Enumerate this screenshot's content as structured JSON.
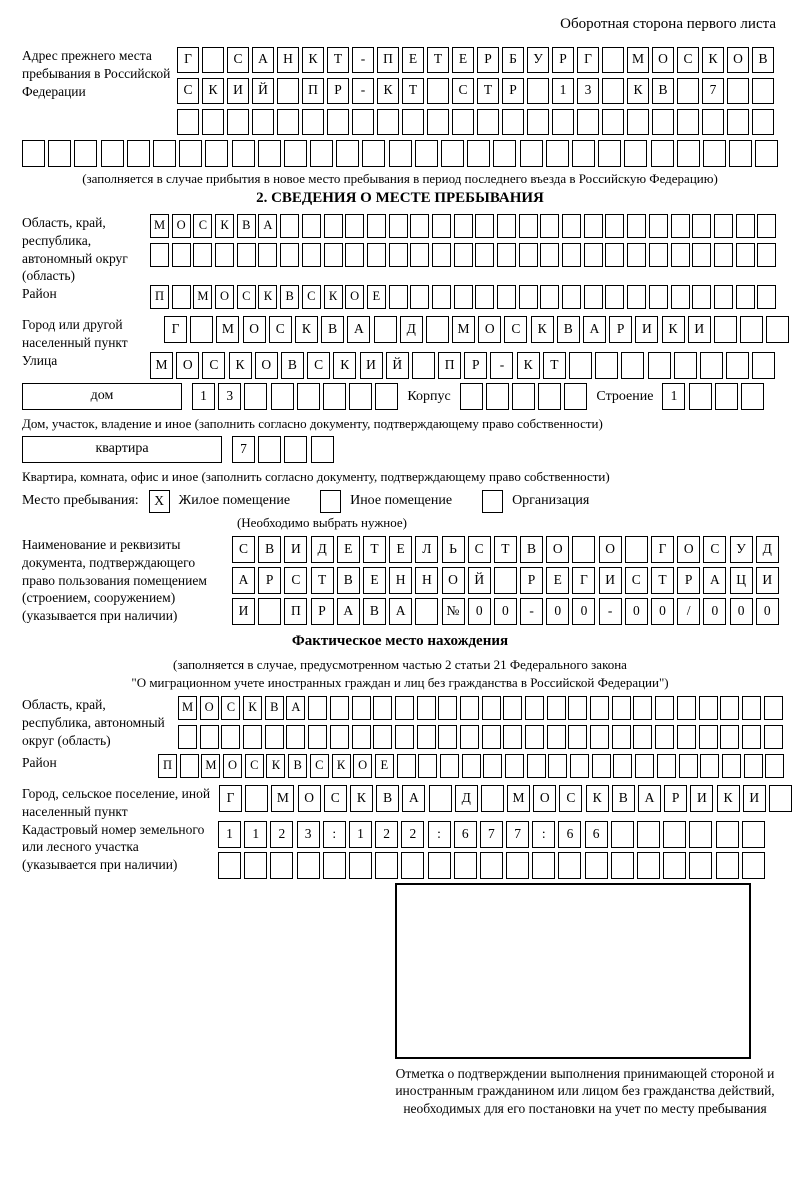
{
  "page_note": "Оборотная сторона первого листа",
  "prev_address": {
    "label": "Адрес прежнего места пребывания в Российской Федерации",
    "row1": {
      "count": 24,
      "chars": [
        "Г",
        "",
        "С",
        "А",
        "Н",
        "К",
        "Т",
        "-",
        "П",
        "Е",
        "Т",
        "Е",
        "Р",
        "Б",
        "У",
        "Р",
        "Г",
        "",
        "М",
        "О",
        "С",
        "К",
        "О",
        "В"
      ]
    },
    "row2": {
      "count": 24,
      "chars": [
        "С",
        "К",
        "И",
        "Й",
        "",
        "П",
        "Р",
        "-",
        "К",
        "Т",
        "",
        "С",
        "Т",
        "Р",
        "",
        "1",
        "3",
        "",
        "К",
        "В",
        "",
        "7"
      ]
    },
    "row3": {
      "count": 24,
      "chars": []
    },
    "row4": {
      "count": 29,
      "chars": []
    },
    "note": "(заполняется в случае прибытия в новое место пребывания в период последнего въезда в Российскую Федерацию)"
  },
  "section2": {
    "title": "2. СВЕДЕНИЯ О МЕСТЕ ПРЕБЫВАНИЯ",
    "region": {
      "label": "Область, край, республика, автономный округ (область)",
      "row1": {
        "count": 29,
        "chars": [
          "М",
          "О",
          "С",
          "К",
          "В",
          "А"
        ]
      },
      "row2": {
        "count": 29,
        "chars": []
      }
    },
    "district": {
      "label": "Район",
      "row": {
        "count": 29,
        "chars": [
          "П",
          "",
          "М",
          "О",
          "С",
          "К",
          "В",
          "С",
          "К",
          "О",
          "Е"
        ]
      }
    },
    "city": {
      "label": "Город или другой населенный пункт",
      "row": {
        "count": 24,
        "chars": [
          "Г",
          "",
          "М",
          "О",
          "С",
          "К",
          "В",
          "А",
          "",
          "Д",
          "",
          "М",
          "О",
          "С",
          "К",
          "В",
          "А",
          "Р",
          "И",
          "К",
          "И"
        ]
      }
    },
    "street": {
      "label": "Улица",
      "row": {
        "count": 24,
        "chars": [
          "М",
          "О",
          "С",
          "К",
          "О",
          "В",
          "С",
          "К",
          "И",
          "Й",
          "",
          "П",
          "Р",
          "-",
          "К",
          "Т"
        ]
      }
    },
    "house": {
      "box_label": "дом",
      "cells": {
        "count": 8,
        "chars": [
          "1",
          "3"
        ]
      },
      "korpus_label": "Корпус",
      "korpus_cells": {
        "count": 5,
        "chars": []
      },
      "stroenie_label": "Строение",
      "stroenie_cells": {
        "count": 4,
        "chars": [
          "1"
        ]
      },
      "note": "Дом, участок, владение и иное (заполнить согласно документу, подтверждающему право собственности)"
    },
    "apartment": {
      "box_label": "квартира",
      "cells": {
        "count": 4,
        "chars": [
          "7"
        ]
      },
      "note": "Квартира, комната, офис и иное (заполнить согласно документу, подтверждающему право собственности)"
    },
    "stay_type": {
      "label": "Место пребывания:",
      "options": [
        {
          "label": "Жилое помещение",
          "checked": "X"
        },
        {
          "label": "Иное помещение",
          "checked": ""
        },
        {
          "label": "Организация",
          "checked": ""
        }
      ],
      "note": "(Необходимо выбрать нужное)"
    },
    "document": {
      "label": "Наименование и реквизиты документа, подтверждающего право пользования помещением (строением, сооружением) (указывается при наличии)",
      "row1": {
        "count": 21,
        "chars": [
          "С",
          "В",
          "И",
          "Д",
          "Е",
          "Т",
          "Е",
          "Л",
          "Ь",
          "С",
          "Т",
          "В",
          "О",
          "",
          "О",
          "",
          "Г",
          "О",
          "С",
          "У",
          "Д"
        ]
      },
      "row2": {
        "count": 21,
        "chars": [
          "А",
          "Р",
          "С",
          "Т",
          "В",
          "Е",
          "Н",
          "Н",
          "О",
          "Й",
          "",
          "Р",
          "Е",
          "Г",
          "И",
          "С",
          "Т",
          "Р",
          "А",
          "Ц",
          "И"
        ]
      },
      "row3": {
        "count": 21,
        "chars": [
          "И",
          "",
          "П",
          "Р",
          "А",
          "В",
          "А",
          "",
          "№",
          "0",
          "0",
          "-",
          "0",
          "0",
          "-",
          "0",
          "0",
          "/",
          "0",
          "0",
          "0"
        ]
      }
    }
  },
  "actual": {
    "title": "Фактическое место нахождения",
    "note1": "(заполняется в случае, предусмотренном частью 2 статьи 21 Федерального закона",
    "note2": "\"О миграционном учете иностранных граждан и лиц без гражданства в Российской Федерации\")",
    "region": {
      "label": "Область, край, республика, автономный округ (область)",
      "row1": {
        "count": 28,
        "chars": [
          "М",
          "О",
          "С",
          "К",
          "В",
          "А"
        ]
      },
      "row2": {
        "count": 28,
        "chars": []
      }
    },
    "district": {
      "label": "Район",
      "row": {
        "count": 29,
        "chars": [
          "П",
          "",
          "М",
          "О",
          "С",
          "К",
          "В",
          "С",
          "К",
          "О",
          "Е"
        ]
      }
    },
    "city": {
      "label": "Город, сельское поселение, иной населенный пункт",
      "row": {
        "count": 22,
        "chars": [
          "Г",
          "",
          "М",
          "О",
          "С",
          "К",
          "В",
          "А",
          "",
          "Д",
          "",
          "М",
          "О",
          "С",
          "К",
          "В",
          "А",
          "Р",
          "И",
          "К",
          "И"
        ]
      }
    },
    "cadastral": {
      "label": "Кадастровый номер земельного или лесного участка (указывается при наличии)",
      "row1": {
        "count": 21,
        "chars": [
          "1",
          "1",
          "2",
          "3",
          ":",
          "1",
          "2",
          "2",
          ":",
          "6",
          "7",
          "7",
          ":",
          "6",
          "6"
        ]
      },
      "row2": {
        "count": 21,
        "chars": []
      }
    },
    "stamp_note": "Отметка о подтверждении выполнения принимающей стороной и иностранным гражданином или лицом без гражданства действий, необходимых для его постановки на учет по месту пребывания"
  }
}
